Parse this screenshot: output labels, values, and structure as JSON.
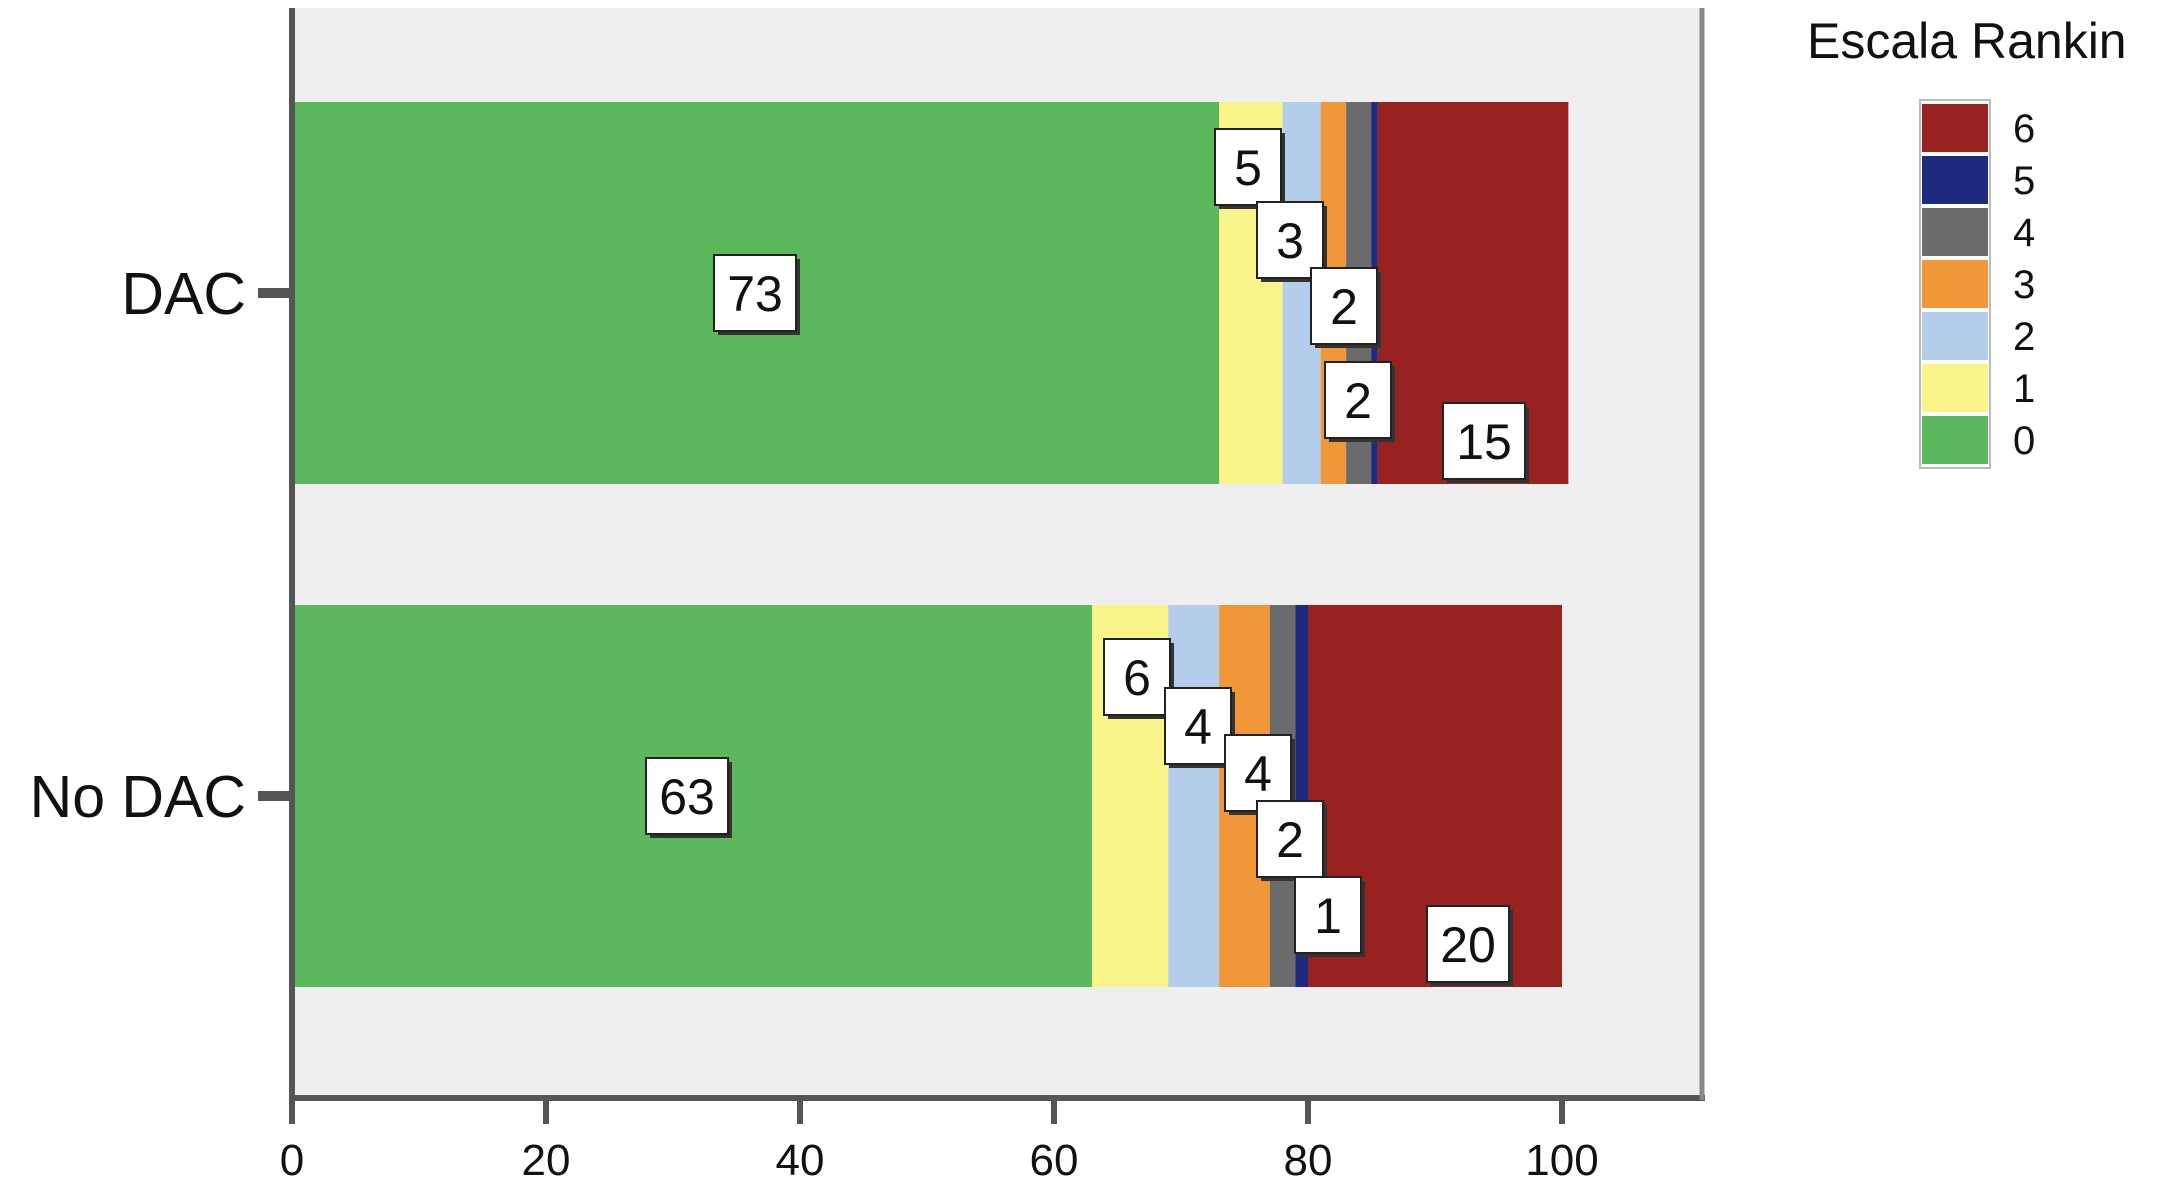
{
  "chart_data": {
    "type": "bar",
    "orientation": "horizontal",
    "stacked": true,
    "categories": [
      "DAC",
      "No DAC"
    ],
    "xlim": [
      0,
      110
    ],
    "xticks": [
      0,
      20,
      40,
      60,
      80,
      100
    ],
    "grid": false,
    "legend": {
      "title": "Escala Rankin",
      "placement": "top-right",
      "order": [
        "6",
        "5",
        "4",
        "3",
        "2",
        "1",
        "0"
      ]
    },
    "series": [
      {
        "name": "0",
        "color": "#5cb85c",
        "values": [
          73,
          63
        ]
      },
      {
        "name": "1",
        "color": "#f9f58a",
        "values": [
          5,
          6
        ]
      },
      {
        "name": "2",
        "color": "#b4cdea",
        "values": [
          3,
          4
        ]
      },
      {
        "name": "3",
        "color": "#f0973a",
        "values": [
          2,
          4
        ]
      },
      {
        "name": "4",
        "color": "#6b6b6b",
        "values": [
          2,
          2
        ]
      },
      {
        "name": "5",
        "color": "#1e2a80",
        "values": [
          0.5,
          1
        ]
      },
      {
        "name": "6",
        "color": "#982220",
        "values": [
          15,
          20
        ]
      }
    ],
    "data_labels": [
      [
        "73",
        "5",
        "3",
        "2",
        "2",
        "",
        "15"
      ],
      [
        "63",
        "6",
        "4",
        "4",
        "2",
        "1",
        "20"
      ]
    ]
  }
}
